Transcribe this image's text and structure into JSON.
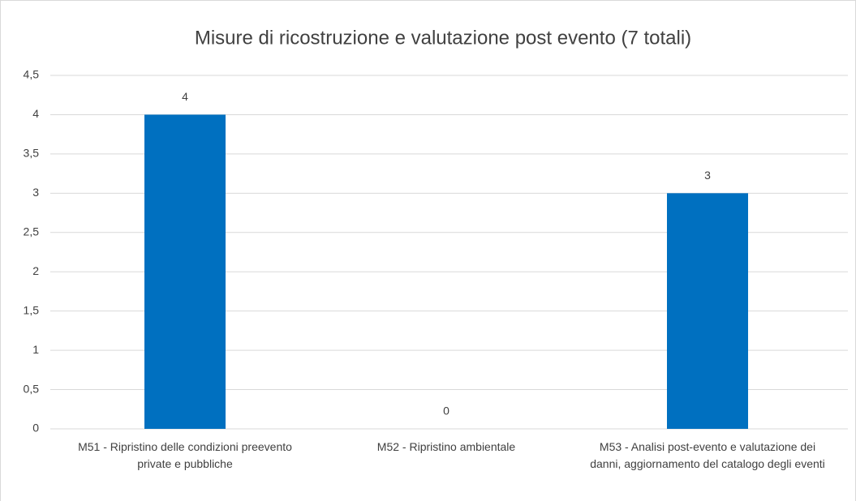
{
  "chart_data": {
    "type": "bar",
    "title": "Misure di ricostruzione e valutazione post evento (7 totali)",
    "categories": [
      "M51 - Ripristino delle condizioni preevento private e pubbliche",
      "M52 - Ripristino ambientale",
      "M53 - Analisi post-evento e valutazione dei danni, aggiornamento del catalogo degli eventi"
    ],
    "values": [
      4,
      0,
      3
    ],
    "color": "#0070c0",
    "ylim": [
      0,
      4.5
    ],
    "yticks": [
      0,
      {
        "value": 0.5,
        "label": "0,5"
      },
      1,
      {
        "value": 1.5,
        "label": "1,5"
      },
      2,
      {
        "value": 2.5,
        "label": "2,5"
      },
      3,
      {
        "value": 3.5,
        "label": "3,5"
      },
      4,
      {
        "value": 4.5,
        "label": "4,5"
      }
    ],
    "grid": true
  }
}
